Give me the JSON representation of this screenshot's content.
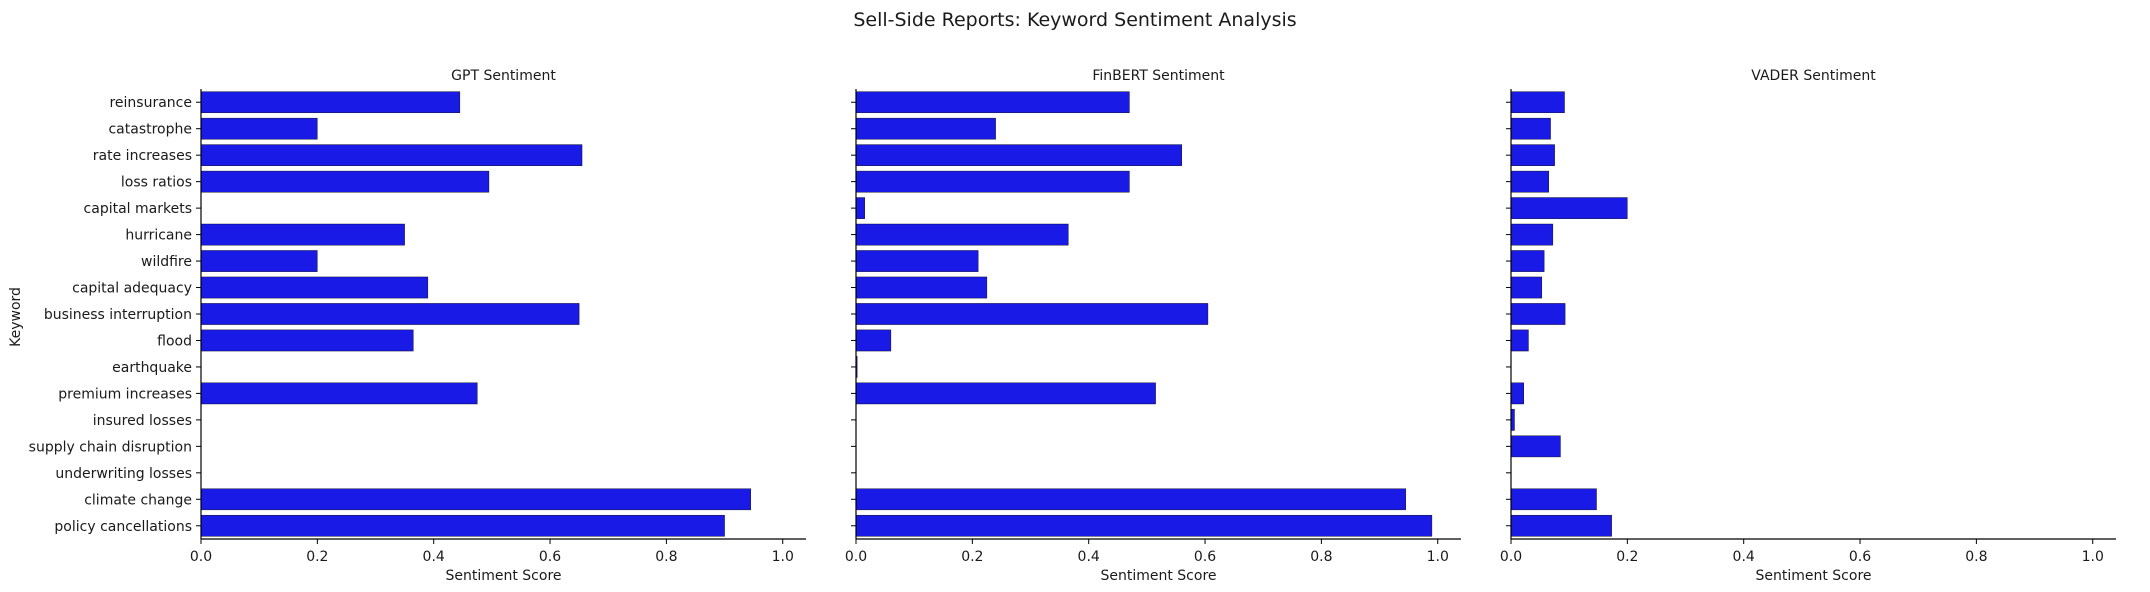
{
  "chart_data": {
    "type": "bar",
    "orientation": "horizontal",
    "title": "Sell-Side Reports: Keyword Sentiment Analysis",
    "ylabel": "Keyword",
    "bar_color": "#1a1ae6",
    "categories": [
      "reinsurance",
      "catastrophe",
      "rate increases",
      "loss ratios",
      "capital markets",
      "hurricane",
      "wildfire",
      "capital adequacy",
      "business interruption",
      "flood",
      "earthquake",
      "premium increases",
      "insured losses",
      "supply chain disruption",
      "underwriting losses",
      "climate change",
      "policy cancellations"
    ],
    "xlim": [
      0,
      1.04
    ],
    "xticks": [
      "0.0",
      "0.2",
      "0.4",
      "0.6",
      "0.8",
      "1.0"
    ],
    "panels": [
      {
        "title": "GPT Sentiment",
        "xlabel": "Sentiment Score",
        "values": [
          0.445,
          0.2,
          0.655,
          0.495,
          0.0,
          0.35,
          0.2,
          0.39,
          0.65,
          0.365,
          0.0,
          0.475,
          0.0,
          0.0,
          0.0,
          0.945,
          0.9
        ]
      },
      {
        "title": "FinBERT Sentiment",
        "xlabel": "Sentiment Score",
        "values": [
          0.47,
          0.24,
          0.56,
          0.47,
          0.015,
          0.365,
          0.21,
          0.225,
          0.605,
          0.06,
          0.002,
          0.515,
          0.0,
          0.0,
          0.0,
          0.945,
          0.99
        ]
      },
      {
        "title": "VADER Sentiment",
        "xlabel": "Sentiment Score",
        "values": [
          0.092,
          0.068,
          0.075,
          0.065,
          0.2,
          0.072,
          0.057,
          0.053,
          0.093,
          0.03,
          0.0,
          0.022,
          0.006,
          0.085,
          0.0,
          0.147,
          0.173
        ]
      }
    ],
    "grid": false,
    "legend": "none"
  }
}
